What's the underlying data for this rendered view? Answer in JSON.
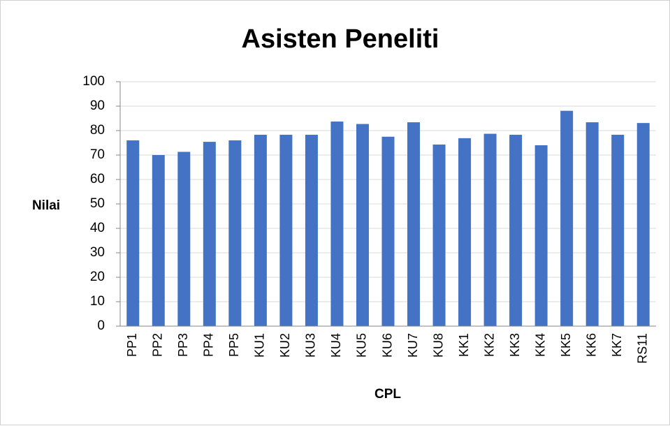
{
  "chart_data": {
    "type": "bar",
    "title": "Asisten Peneliti",
    "x_label": "CPL",
    "y_label": "Nilai",
    "categories": [
      "PP1",
      "PP2",
      "PP3",
      "PP4",
      "PP5",
      "KU1",
      "KU2",
      "KU3",
      "KU4",
      "KU5",
      "KU6",
      "KU7",
      "KU8",
      "KK1",
      "KK2",
      "KK3",
      "KK4",
      "KK5",
      "KK6",
      "KK7",
      "RS11"
    ],
    "values": [
      76,
      70,
      71.3,
      75.4,
      76,
      78.3,
      78.3,
      78.3,
      83.7,
      82.7,
      77.5,
      83.4,
      74.3,
      76.9,
      78.7,
      78.3,
      74,
      88.1,
      83.4,
      78.3,
      83.1
    ],
    "color": "#4472c4",
    "ylim": [
      0,
      100
    ],
    "yticks": [
      0,
      10,
      20,
      30,
      40,
      50,
      60,
      70,
      80,
      90,
      100
    ],
    "grid": true
  }
}
